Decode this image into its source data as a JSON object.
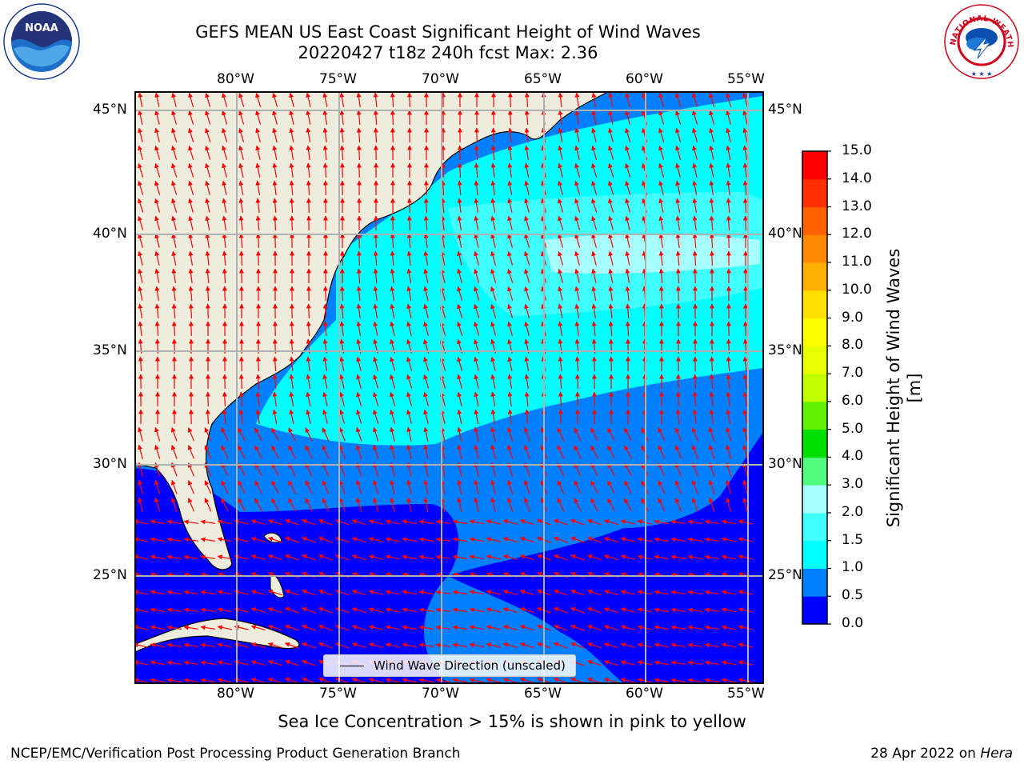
{
  "title": {
    "line1": "GEFS MEAN US East Coast Significant Height of Wind Waves",
    "line2": "20220427 t18z 240h fcst   Max: 2.36"
  },
  "logos": {
    "left": {
      "icon": "noaa-logo-icon",
      "text": "NOAA"
    },
    "right": {
      "icon": "national-weather-service-logo-icon",
      "text": "NATIONAL WEATHER SERVICE"
    }
  },
  "map": {
    "lon_labels": [
      "80°W",
      "75°W",
      "70°W",
      "65°W",
      "60°W",
      "55°W"
    ],
    "lat_labels": [
      "45°N",
      "40°N",
      "35°N",
      "30°N",
      "25°N"
    ],
    "legend": "Wind Wave Direction (unscaled)",
    "land_color": "#eeecdc",
    "arrow_color": "#ff0000",
    "grid_color": "#b0b0b0"
  },
  "colorbar": {
    "label": "Significant Height of Wind Waves [m]",
    "ticks": [
      "0.0",
      "0.5",
      "1.0",
      "1.5",
      "2.0",
      "3.0",
      "4.0",
      "5.0",
      "6.0",
      "7.0",
      "8.0",
      "9.0",
      "10.0",
      "11.0",
      "12.0",
      "13.0",
      "14.0",
      "15.0"
    ],
    "colors": [
      "#0000ff",
      "#0080ff",
      "#00ffff",
      "#40ffff",
      "#a8ffff",
      "#50ff80",
      "#00e000",
      "#60f000",
      "#c0ff00",
      "#e8ff00",
      "#ffff00",
      "#ffe000",
      "#ffb000",
      "#ff8800",
      "#ff6000",
      "#ff3000",
      "#ff0000"
    ]
  },
  "sea_ice_note": "Sea Ice Concentration > 15% is shown in pink to yellow",
  "footer": {
    "left": "NCEP/EMC/Verification Post Processing Product Generation Branch",
    "right_date": "28 Apr 2022 on ",
    "right_machine": "Hera"
  }
}
